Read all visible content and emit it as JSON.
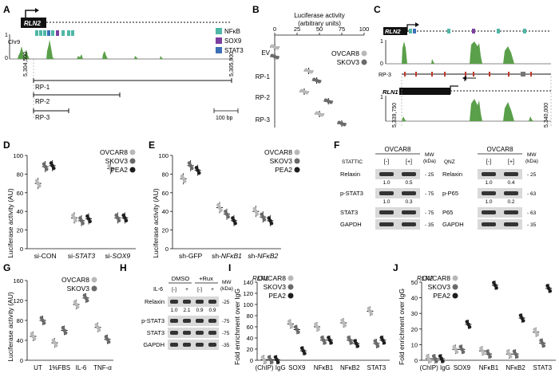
{
  "colors": {
    "ovcar8": "#b8b8b8",
    "skov3": "#6a6a6a",
    "pea2": "#1e1e1e",
    "nfkb": "#4fb7a6",
    "sox9": "#7b3fa0",
    "stat3": "#3c6fb6",
    "track": "#5a9f4a",
    "exon": "#111111",
    "red": "#c0392b",
    "gray": "#777777"
  },
  "panelA": {
    "letter": "A",
    "gene": "RLN2",
    "chrom": "Chr9",
    "track_max": "1",
    "track_min": "0",
    "tf_legend": [
      "NFκB",
      "SOX9",
      "STAT3"
    ],
    "x_left": "5,304,500",
    "x_right": "5,305,900",
    "regions": [
      "RP-1",
      "RP-2",
      "RP-3"
    ],
    "scale_bar": "100 bp"
  },
  "panelB": {
    "letter": "B",
    "title_l1": "Luciferase activity",
    "title_l2": "(arbitrary units)",
    "ticks": [
      "0",
      "25",
      "50",
      "75",
      "100"
    ],
    "rows": [
      "EV",
      "RP-1",
      "RP-2",
      "RP-3"
    ],
    "legend": [
      "OVCAR8",
      "SKOV3"
    ]
  },
  "panelC": {
    "letter": "C",
    "gene1": "RLN2",
    "gene2": "RLN1",
    "region": "RP-3",
    "track_max": "1",
    "track_min": "0",
    "x_left": "5,339,750",
    "x_right": "5,340,000"
  },
  "panelD": {
    "letter": "D",
    "ylabel": "Luciferase activity (AU)",
    "yticks": [
      "0",
      "20",
      "40",
      "60",
      "80",
      "100"
    ],
    "groups": [
      {
        "prefix": "si-",
        "name": "CON",
        "italic": false
      },
      {
        "prefix": "si-",
        "name": "STAT3",
        "italic": true
      },
      {
        "prefix": "si-",
        "name": "SOX9",
        "italic": true
      }
    ],
    "legend": [
      "OVCAR8",
      "SKOV3",
      "PEA2"
    ]
  },
  "panelE": {
    "letter": "E",
    "ylabel": "Luciferase activity (AU)",
    "yticks": [
      "0",
      "20",
      "40",
      "60",
      "80",
      "100"
    ],
    "groups": [
      {
        "prefix": "sh-",
        "name": "GFP",
        "italic": false
      },
      {
        "prefix": "sh-",
        "name": "NFκB1",
        "italic": true
      },
      {
        "prefix": "sh-",
        "name": "NFκB2",
        "italic": true
      }
    ],
    "legend": [
      "OVCAR8",
      "SKOV3",
      "PEA2"
    ]
  },
  "panelF": {
    "letter": "F",
    "left": {
      "cell": "OVCAR8",
      "treat": "STATTIC",
      "lanes": [
        "[-]",
        "[+]"
      ],
      "mw_label": "MW (kDa)",
      "bands": [
        {
          "name": "Relaxin",
          "vals": [
            "1.0",
            "0.5"
          ],
          "mw": "25"
        },
        {
          "name": "p-STAT3",
          "vals": [
            "1.0",
            "0.3"
          ],
          "mw": "75"
        },
        {
          "name": "STAT3",
          "vals": [],
          "mw": "75"
        },
        {
          "name": "GAPDH",
          "vals": [],
          "mw": "35"
        }
      ]
    },
    "right": {
      "cell": "OVCAR8",
      "treat": "QNZ",
      "lanes": [
        "[-]",
        "[+]"
      ],
      "mw_label": "MW (kDa)",
      "bands": [
        {
          "name": "Relaxin",
          "vals": [
            "1.0",
            "0.4"
          ],
          "mw": "25"
        },
        {
          "name": "p-P65",
          "vals": [
            "1.0",
            "0.2"
          ],
          "mw": "63"
        },
        {
          "name": "P65",
          "vals": [],
          "mw": "63"
        },
        {
          "name": "GAPDH",
          "vals": [],
          "mw": "35"
        }
      ]
    }
  },
  "panelG": {
    "letter": "G",
    "ylabel": "Luciferase activity (AU)",
    "yticks": [
      "0",
      "40",
      "80",
      "120",
      "160"
    ],
    "groups": [
      "UT",
      "1%FBS",
      "IL-6",
      "TNF-α"
    ],
    "legend": [
      "OVCAR8",
      "SKOV3"
    ]
  },
  "panelH": {
    "letter": "H",
    "cond1": "DMSO",
    "cond2": "+Rux",
    "il6": "IL-6",
    "lanes": [
      "[-]",
      "+",
      "[-]",
      "+"
    ],
    "mw_label": "MW (kDa)",
    "bands": [
      {
        "name": "Relaxin",
        "mw": "25",
        "vals": [
          "1.0",
          "2.1",
          "0.9",
          "0.9"
        ]
      },
      {
        "name": "p-STAT3",
        "mw": "75"
      },
      {
        "name": "STAT3",
        "mw": "75"
      },
      {
        "name": "GAPDH",
        "mw": "35"
      }
    ]
  },
  "panelI": {
    "letter": "I",
    "gene": "RLN1",
    "ylabel": "Fold enrichment over IgG",
    "yticks": [
      "0",
      "20",
      "40",
      "60",
      "80",
      "100",
      "120",
      "140"
    ],
    "groups": [
      "(ChIP) IgG",
      "SOX9",
      "NFκB1",
      "NFκB2",
      "STAT3"
    ],
    "legend": [
      "OVCAR8",
      "SKOV3",
      "PEA2"
    ]
  },
  "panelJ": {
    "letter": "J",
    "gene": "RLN2",
    "ylabel": "Fold enrichment over IgG",
    "yticks": [
      "0",
      "10",
      "20",
      "30",
      "40",
      "50"
    ],
    "groups": [
      "(ChIP) IgG",
      "SOX9",
      "NFκB1",
      "NFκB2",
      "STAT3"
    ],
    "legend": [
      "OVCAR8",
      "SKOV3",
      "PEA2"
    ]
  },
  "chart_data": [
    {
      "type": "scatter",
      "id": "B",
      "xlabel": "Luciferase activity (arbitrary units)",
      "xlim": [
        0,
        100
      ],
      "categories": [
        "EV",
        "RP-1",
        "RP-2",
        "RP-3"
      ],
      "series": [
        {
          "name": "OVCAR8",
          "values": [
            0,
            38,
            33,
            50
          ]
        },
        {
          "name": "SKOV3",
          "values": [
            0,
            47,
            60,
            75
          ]
        }
      ]
    },
    {
      "type": "scatter",
      "id": "D",
      "ylabel": "Luciferase activity (AU)",
      "ylim": [
        0,
        100
      ],
      "categories": [
        "si-CON",
        "si-STAT3",
        "si-SOX9"
      ],
      "series": [
        {
          "name": "OVCAR8",
          "values": [
            70,
            33,
            86
          ]
        },
        {
          "name": "SKOV3",
          "values": [
            88,
            30,
            33
          ]
        },
        {
          "name": "PEA2",
          "values": [
            89,
            32,
            33
          ]
        }
      ]
    },
    {
      "type": "scatter",
      "id": "E",
      "ylabel": "Luciferase activity (AU)",
      "ylim": [
        0,
        100
      ],
      "categories": [
        "sh-GFP",
        "sh-NFκB1",
        "sh-NFκB2"
      ],
      "series": [
        {
          "name": "OVCAR8",
          "values": [
            75,
            44,
            40
          ]
        },
        {
          "name": "SKOV3",
          "values": [
            89,
            37,
            34
          ]
        },
        {
          "name": "PEA2",
          "values": [
            84,
            30,
            30
          ]
        }
      ]
    },
    {
      "type": "scatter",
      "id": "G",
      "ylabel": "Luciferase activity (AU)",
      "ylim": [
        0,
        160
      ],
      "categories": [
        "UT",
        "1%FBS",
        "IL-6",
        "TNF-α"
      ],
      "series": [
        {
          "name": "OVCAR8",
          "values": [
            48,
            35,
            112,
            66
          ]
        },
        {
          "name": "SKOV3",
          "values": [
            80,
            60,
            125,
            42
          ]
        }
      ]
    },
    {
      "type": "scatter",
      "id": "I",
      "ylabel": "Fold enrichment over IgG",
      "ylim": [
        0,
        140
      ],
      "categories": [
        "(ChIP) IgG",
        "SOX9",
        "NFκB1",
        "NFκB2",
        "STAT3"
      ],
      "series": [
        {
          "name": "OVCAR8",
          "values": [
            1,
            65,
            60,
            67,
            88
          ]
        },
        {
          "name": "SKOV3",
          "values": [
            1,
            55,
            36,
            36,
            30
          ]
        },
        {
          "name": "PEA2",
          "values": [
            1,
            17,
            36,
            30,
            36
          ]
        }
      ]
    },
    {
      "type": "scatter",
      "id": "J",
      "ylabel": "Fold enrichment over IgG",
      "ylim": [
        0,
        50
      ],
      "categories": [
        "(ChIP) IgG",
        "SOX9",
        "NFκB1",
        "NFκB2",
        "STAT3"
      ],
      "series": [
        {
          "name": "OVCAR8",
          "values": [
            1,
            7,
            6,
            4,
            18
          ]
        },
        {
          "name": "SKOV3",
          "values": [
            1,
            7,
            4,
            4,
            11
          ]
        },
        {
          "name": "PEA2",
          "values": [
            1,
            23,
            48,
            27,
            46
          ]
        }
      ]
    }
  ]
}
